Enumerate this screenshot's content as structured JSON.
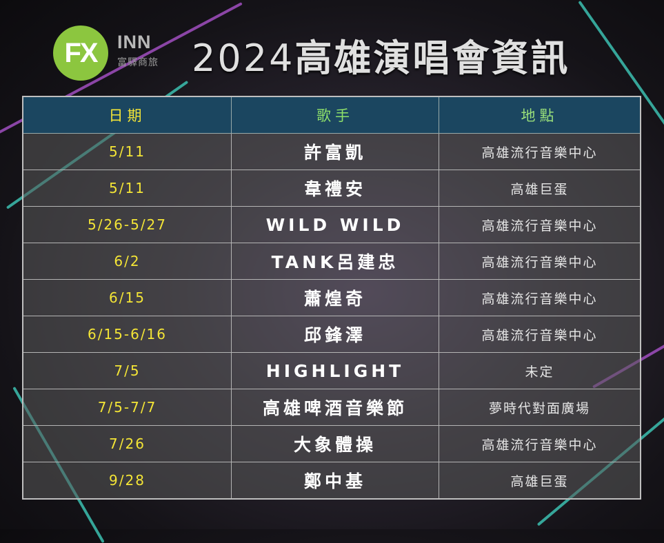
{
  "brand": {
    "logo_text": "FX",
    "name": "INN",
    "subtitle": "富驛商旅"
  },
  "title": {
    "year": "2024",
    "text": "高雄演唱會資訊"
  },
  "table": {
    "headers": [
      "日期",
      "歌手",
      "地點"
    ],
    "header_colors": [
      "#f4e536",
      "#8ee06a",
      "#9ae07a"
    ],
    "rows": [
      {
        "date": "5/11",
        "artist": "許富凱",
        "venue": "高雄流行音樂中心"
      },
      {
        "date": "5/11",
        "artist": "韋禮安",
        "venue": "高雄巨蛋"
      },
      {
        "date": "5/26-5/27",
        "artist": "WILD WILD",
        "venue": "高雄流行音樂中心"
      },
      {
        "date": "6/2",
        "artist": "TANK呂建忠",
        "venue": "高雄流行音樂中心"
      },
      {
        "date": "6/15",
        "artist": "蕭煌奇",
        "venue": "高雄流行音樂中心"
      },
      {
        "date": "6/15-6/16",
        "artist": "邱鋒澤",
        "venue": "高雄流行音樂中心"
      },
      {
        "date": "7/5",
        "artist": "HIGHLIGHT",
        "venue": "未定"
      },
      {
        "date": "7/5-7/7",
        "artist": "高雄啤酒音樂節",
        "venue": "夢時代對面廣場"
      },
      {
        "date": "7/26",
        "artist": "大象體操",
        "venue": "高雄流行音樂中心"
      },
      {
        "date": "9/28",
        "artist": "鄭中基",
        "venue": "高雄巨蛋"
      }
    ]
  }
}
